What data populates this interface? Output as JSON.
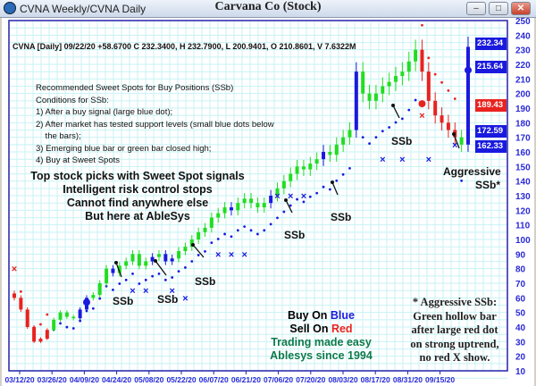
{
  "window": {
    "title": "CVNA Weekly/CVNA Daily",
    "chart_title": "Carvana Co (Stock)",
    "buttons": {
      "minimize": "–",
      "maximize": "□",
      "close": "✕"
    }
  },
  "info_line": "CVNA [Daily] 09/22/20  +58.6700 C 232.3400, H 232.7900, L 200.9401, O 210.8601, V 7.6322M",
  "ssb_text": [
    "Recommended Sweet Spots for Buy Positions (SSb)",
    "Conditions for SSb:",
    "1) After a buy signal (large blue dot);",
    "2) After market has tested support levels (small blue dots below",
    "    the bars);",
    "3) Emerging blue bar or green bar closed high;",
    "4) Buy at Sweet Spots"
  ],
  "promo": [
    "Top stock picks with Sweet Spot signals",
    "Intelligent risk control stops",
    "Cannot find anywhere else",
    "But here at AbleSys"
  ],
  "buysell": {
    "buy_prefix": "Buy On ",
    "buy_word": "Blue",
    "sell_prefix": "Sell On ",
    "sell_word": "Red",
    "line3": "Trading made easy",
    "line4": "Ablesys since 1994"
  },
  "aggressive_note": [
    "* Aggressive SSb:",
    "Green hollow bar",
    "after large red dot",
    "on strong uptrend,",
    "no red X show."
  ],
  "annotations": {
    "ssb": "SSb",
    "aggressive": "Aggressive",
    "aggressive2": "SSb*"
  },
  "price_labels": [
    {
      "text": "232.34",
      "color": "#1a1adf"
    },
    {
      "text": "215.64",
      "color": "#1a1adf"
    },
    {
      "text": "189.43",
      "color": "#e8231f"
    },
    {
      "text": "172.59",
      "color": "#1a1adf"
    },
    {
      "text": "162.33",
      "color": "#1a1adf"
    }
  ],
  "colors": {
    "up": "#22dd22",
    "buy": "#1a1adf",
    "sell": "#e8231f",
    "grid": "#c8f2f4",
    "axis": "#2222aa"
  },
  "chart_data": {
    "type": "candlestick",
    "y_ticks": [
      250,
      240,
      230,
      220,
      210,
      200,
      190,
      180,
      170,
      160,
      150,
      140,
      130,
      120,
      110,
      100,
      90,
      80,
      70,
      60,
      50,
      40,
      30,
      20,
      10
    ],
    "ylim": [
      10,
      250
    ],
    "x_ticks": [
      "03/12/20",
      "03/26/20",
      "04/09/20",
      "04/24/20",
      "05/08/20",
      "05/22/20",
      "06/07/20",
      "06/21/20",
      "07/06/20",
      "07/20/20",
      "08/03/20",
      "08/17/20",
      "08/31/20",
      "09/15/20"
    ],
    "closes": [
      60,
      52,
      40,
      30,
      32,
      38,
      45,
      50,
      47,
      46,
      52,
      60,
      62,
      70,
      80,
      77,
      82,
      85,
      90,
      82,
      85,
      88,
      90,
      85,
      87,
      92,
      95,
      100,
      105,
      108,
      115,
      118,
      122,
      120,
      125,
      128,
      125,
      122,
      125,
      130,
      135,
      140,
      145,
      150,
      148,
      152,
      155,
      160,
      158,
      165,
      170,
      175,
      215,
      200,
      195,
      200,
      205,
      208,
      212,
      215,
      222,
      230,
      215,
      195,
      185,
      180,
      175,
      170,
      165,
      232
    ],
    "bar_signal": "rrrrrrggggbbgggbgggggbgbbggggggggbgggggbgggggggbggggbgggggggggrrrrrrgb",
    "sell_x_marks": [
      [
        0,
        80
      ],
      [
        62,
        185
      ]
    ],
    "buy_x_marks": [
      [
        18,
        65
      ],
      [
        20,
        65
      ],
      [
        24,
        65
      ],
      [
        26,
        60
      ],
      [
        31,
        90
      ],
      [
        33,
        90
      ],
      [
        35,
        90
      ],
      [
        40,
        130
      ],
      [
        42,
        130
      ],
      [
        44,
        130
      ],
      [
        56,
        155
      ],
      [
        59,
        155
      ],
      [
        63,
        155
      ],
      [
        67,
        165
      ]
    ],
    "large_dots": [
      {
        "i": 11,
        "price": 57,
        "signal": "buy"
      },
      {
        "i": 62,
        "price": 193,
        "signal": "sell"
      },
      {
        "i": 69,
        "price": 216,
        "signal": "buy"
      }
    ]
  }
}
